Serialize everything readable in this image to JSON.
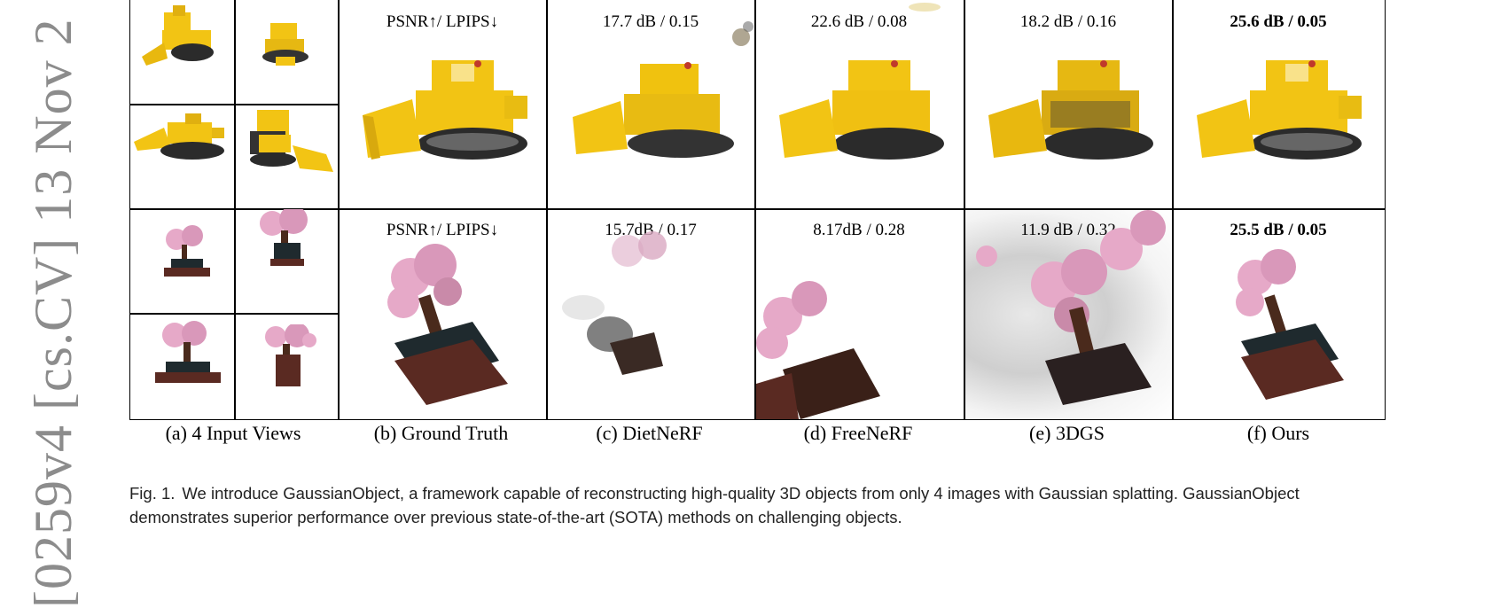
{
  "arxiv_stamp": "[0259v4  [cs.CV]  13 Nov 2",
  "metrics": {
    "row1": {
      "gt": "PSNR↑/ LPIPS↓",
      "dietnerf": "17.7 dB / 0.15",
      "freenerf": "22.6 dB / 0.08",
      "3dgs": "18.2 dB / 0.16",
      "ours": "25.6 dB / 0.05"
    },
    "row2": {
      "gt": "PSNR↑/ LPIPS↓",
      "dietnerf": "15.7dB / 0.17",
      "freenerf": "8.17dB / 0.28",
      "3dgs": "11.9 dB / 0.32",
      "ours": "25.5 dB / 0.05"
    }
  },
  "column_captions": [
    "(a) 4 Input Views",
    "(b) Ground Truth",
    "(c) DietNeRF",
    "(d) FreeNeRF",
    "(e) 3DGS",
    "(f) Ours"
  ],
  "figure_caption": {
    "label": "Fig. 1.",
    "text": "We introduce GaussianObject, a framework capable of reconstructing high-quality 3D objects from only 4 images with Gaussian splatting. GaussianObject demonstrates superior performance over previous state-of-the-art (SOTA) methods on challenging objects."
  },
  "colors": {
    "lego_yellow": "#f2c414",
    "lego_dark": "#2b2b2b",
    "blossom": "#e6a9c8",
    "trunk": "#4a2a1c",
    "pot": "#1f2a2e",
    "stand": "#5a2a22"
  }
}
